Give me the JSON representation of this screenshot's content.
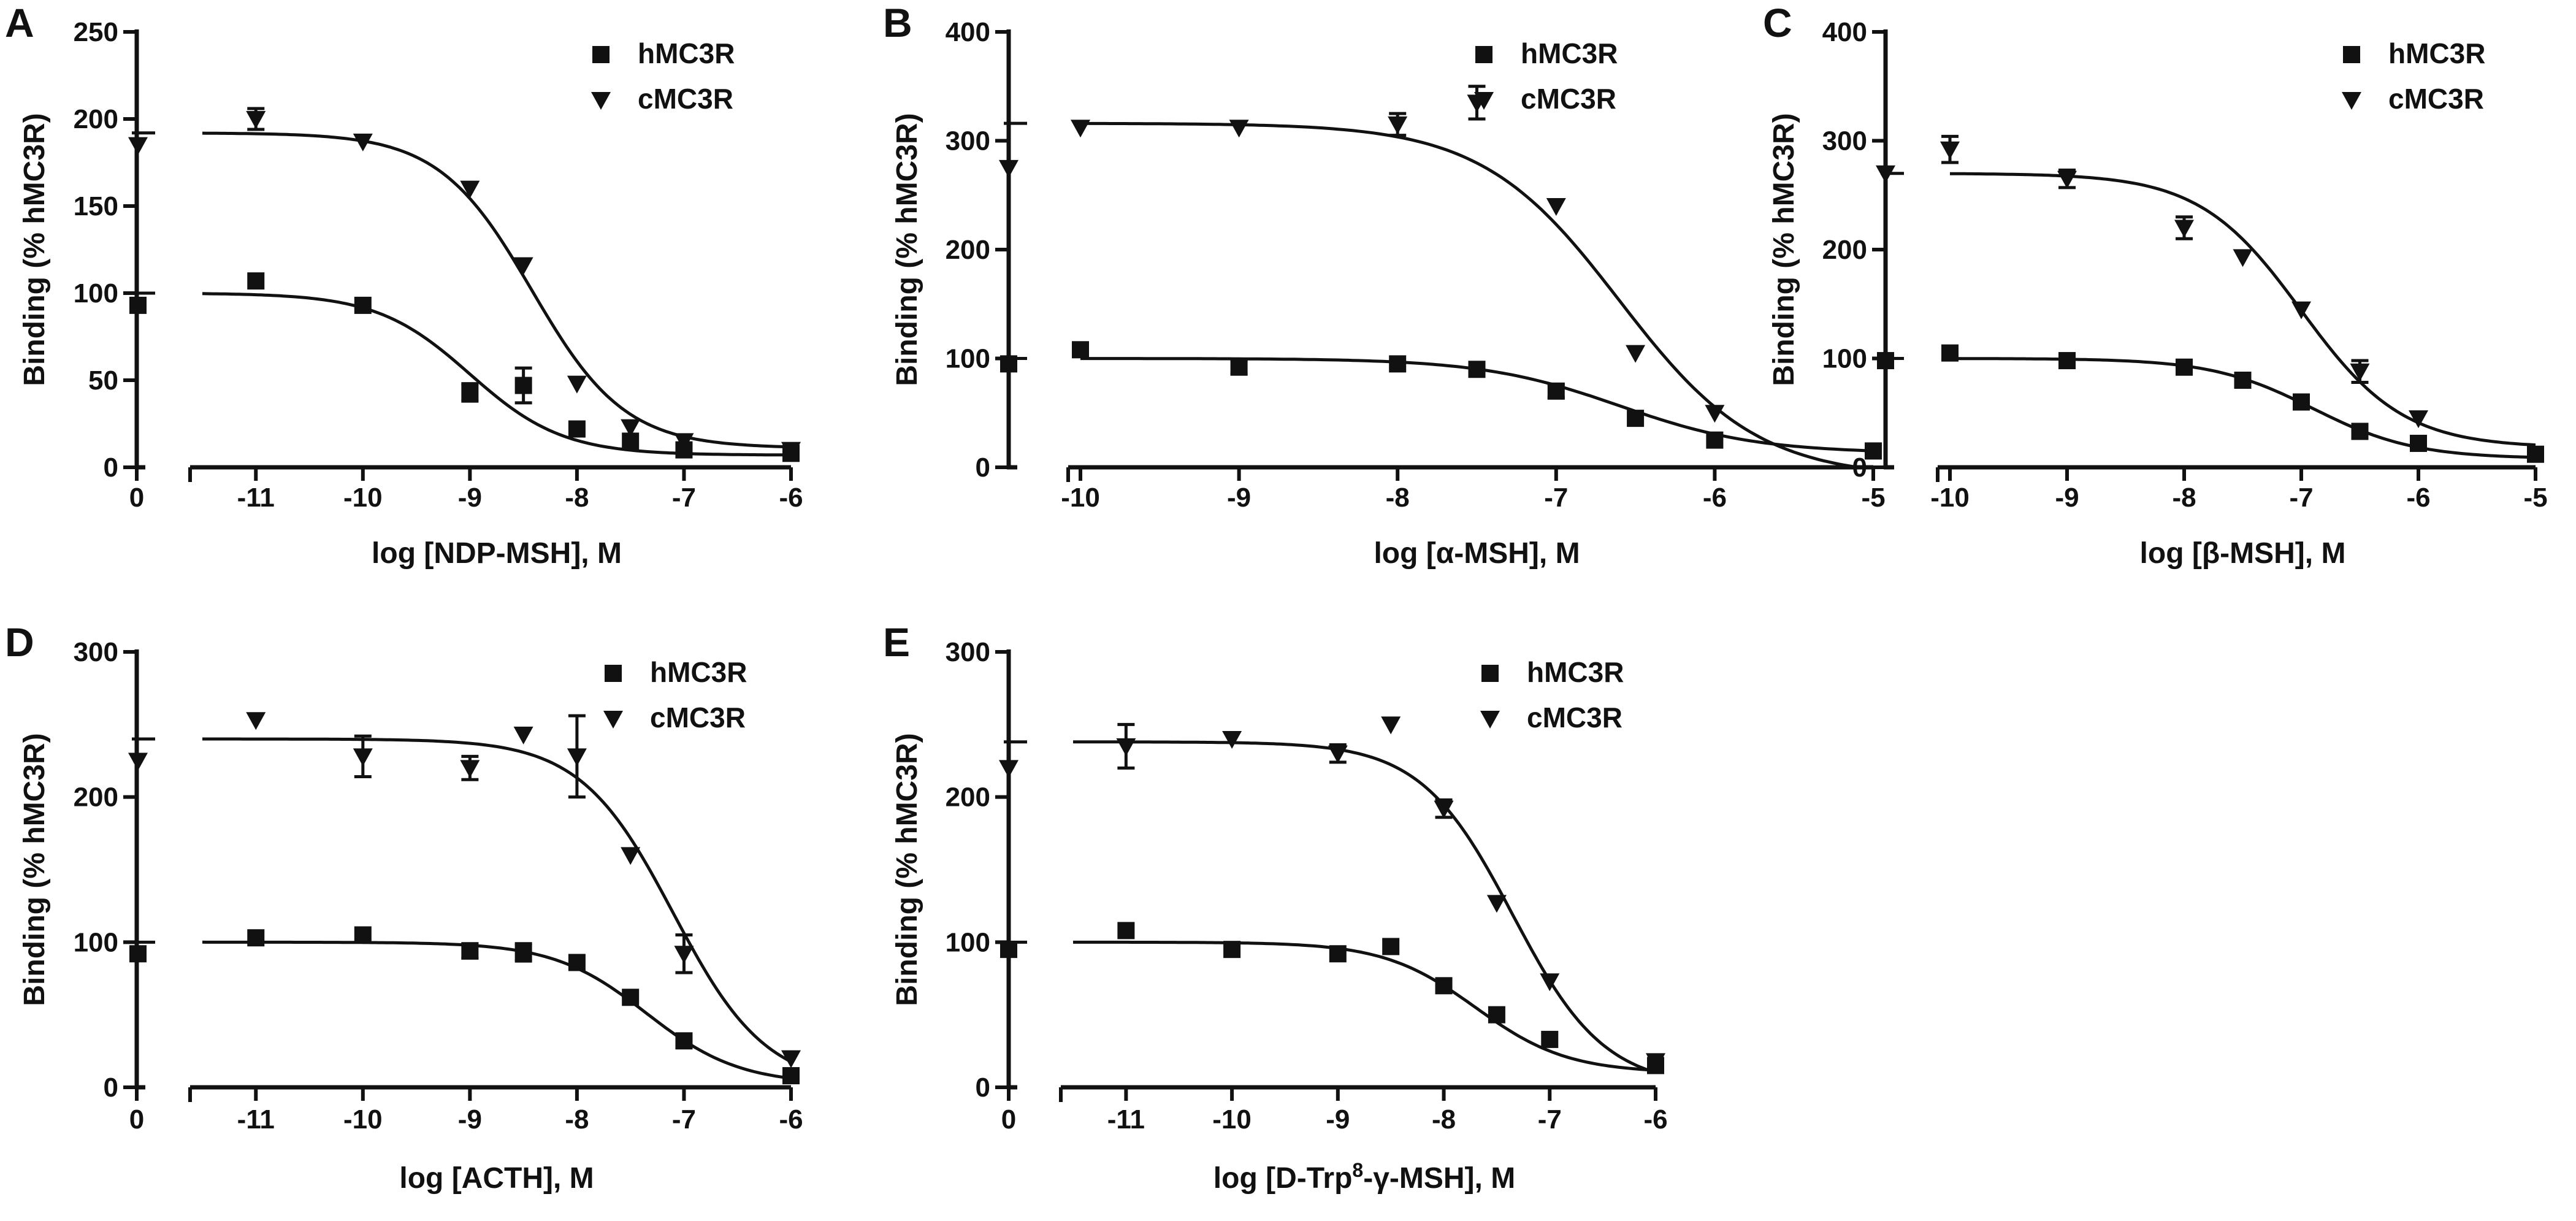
{
  "figure": {
    "series_names": [
      "hMC3R",
      "cMC3R"
    ],
    "colors": {
      "ink": "#111111",
      "background": "#ffffff"
    }
  },
  "chart_data": [
    {
      "type": "scatter",
      "panel": "A",
      "title": "",
      "xlabel": "log [NDP-MSH], M",
      "xlabel_parts": [
        "log [NDP-MSH], M"
      ],
      "ylabel": "Binding (% hMC3R)",
      "ylim": [
        0,
        250
      ],
      "yticks": [
        0,
        50,
        100,
        150,
        200,
        250
      ],
      "xlim": [
        -11.5,
        -6
      ],
      "xticks": [
        -11,
        -10,
        -9,
        -8,
        -7,
        -6
      ],
      "zero_label": "0",
      "legend": [
        "hMC3R",
        "cMC3R"
      ],
      "series": [
        {
          "name": "hMC3R",
          "marker": "square",
          "top": 100,
          "bottom": 7,
          "logEC50": -9.0,
          "zero_value": 93,
          "points": [
            {
              "x": -11,
              "y": 107
            },
            {
              "x": -10,
              "y": 93
            },
            {
              "x": -9,
              "y": 43,
              "err": 5
            },
            {
              "x": -8.5,
              "y": 47,
              "err": 10
            },
            {
              "x": -8,
              "y": 22
            },
            {
              "x": -7.5,
              "y": 15
            },
            {
              "x": -7,
              "y": 10
            },
            {
              "x": -6,
              "y": 8
            }
          ]
        },
        {
          "name": "cMC3R",
          "marker": "triangle",
          "top": 192,
          "bottom": 11,
          "logEC50": -8.42,
          "zero_value": 185,
          "points": [
            {
              "x": -11,
              "y": 200,
              "err": 6
            },
            {
              "x": -10,
              "y": 187
            },
            {
              "x": -9,
              "y": 160
            },
            {
              "x": -8.5,
              "y": 116
            },
            {
              "x": -8,
              "y": 48
            },
            {
              "x": -7.5,
              "y": 23
            },
            {
              "x": -7,
              "y": 15
            },
            {
              "x": -6,
              "y": 10
            }
          ]
        }
      ]
    },
    {
      "type": "scatter",
      "panel": "B",
      "title": "",
      "xlabel": "log [α-MSH], M",
      "xlabel_parts": [
        "log [α-MSH], M"
      ],
      "ylabel": "Binding (% hMC3R)",
      "ylim": [
        0,
        400
      ],
      "yticks": [
        0,
        100,
        200,
        300,
        400
      ],
      "xlim": [
        -10,
        -5
      ],
      "xticks": [
        -10,
        -9,
        -8,
        -7,
        -6,
        -5
      ],
      "zero_label": "",
      "legend": [
        "hMC3R",
        "cMC3R"
      ],
      "series": [
        {
          "name": "hMC3R",
          "marker": "square",
          "top": 100,
          "bottom": 13,
          "logEC50": -6.6,
          "zero_value": 95,
          "points": [
            {
              "x": -10,
              "y": 108
            },
            {
              "x": -9,
              "y": 92,
              "err": 6
            },
            {
              "x": -8,
              "y": 95
            },
            {
              "x": -7.5,
              "y": 90
            },
            {
              "x": -7,
              "y": 70,
              "err": 6
            },
            {
              "x": -6.5,
              "y": 45
            },
            {
              "x": -6,
              "y": 25
            },
            {
              "x": -5,
              "y": 15
            }
          ]
        },
        {
          "name": "cMC3R",
          "marker": "triangle",
          "top": 316,
          "bottom": -10,
          "logEC50": -6.6,
          "zero_value": 275,
          "points": [
            {
              "x": -10,
              "y": 312
            },
            {
              "x": -9,
              "y": 312
            },
            {
              "x": -8,
              "y": 315,
              "err": 10
            },
            {
              "x": -7.5,
              "y": 335,
              "err": 15
            },
            {
              "x": -7,
              "y": 240
            },
            {
              "x": -6.5,
              "y": 105
            },
            {
              "x": -6,
              "y": 50
            }
          ]
        }
      ]
    },
    {
      "type": "scatter",
      "panel": "C",
      "title": "",
      "xlabel": "log [β-MSH], M",
      "xlabel_parts": [
        "log [β-MSH], M"
      ],
      "ylabel": "Binding (% hMC3R)",
      "ylim": [
        0,
        400
      ],
      "yticks": [
        0,
        100,
        200,
        300,
        400
      ],
      "xlim": [
        -10,
        -5
      ],
      "xticks": [
        -10,
        -9,
        -8,
        -7,
        -6,
        -5
      ],
      "zero_label": "",
      "legend": [
        "hMC3R",
        "cMC3R"
      ],
      "series": [
        {
          "name": "hMC3R",
          "marker": "square",
          "top": 100,
          "bottom": 8,
          "logEC50": -6.9,
          "zero_value": 98,
          "points": [
            {
              "x": -10,
              "y": 105,
              "err": 6
            },
            {
              "x": -9,
              "y": 98
            },
            {
              "x": -8,
              "y": 92
            },
            {
              "x": -7.5,
              "y": 80
            },
            {
              "x": -7,
              "y": 60
            },
            {
              "x": -6.5,
              "y": 33
            },
            {
              "x": -6,
              "y": 22
            },
            {
              "x": -5,
              "y": 12,
              "err": 6
            }
          ]
        },
        {
          "name": "cMC3R",
          "marker": "triangle",
          "top": 270,
          "bottom": 18,
          "logEC50": -7.0,
          "zero_value": 270,
          "points": [
            {
              "x": -10,
              "y": 292,
              "err": 12
            },
            {
              "x": -9,
              "y": 265,
              "err": 8
            },
            {
              "x": -8,
              "y": 220,
              "err": 10
            },
            {
              "x": -7.5,
              "y": 193
            },
            {
              "x": -7,
              "y": 145
            },
            {
              "x": -6.5,
              "y": 88,
              "err": 10
            },
            {
              "x": -6,
              "y": 45
            }
          ]
        }
      ]
    },
    {
      "type": "scatter",
      "panel": "D",
      "title": "",
      "xlabel": "log [ACTH], M",
      "xlabel_parts": [
        "log [ACTH], M"
      ],
      "ylabel": "Binding (% hMC3R)",
      "ylim": [
        0,
        300
      ],
      "yticks": [
        0,
        100,
        200,
        300
      ],
      "xlim": [
        -11.5,
        -6
      ],
      "xticks": [
        -11,
        -10,
        -9,
        -8,
        -7,
        -6
      ],
      "zero_label": "0",
      "legend": [
        "hMC3R",
        "cMC3R"
      ],
      "series": [
        {
          "name": "hMC3R",
          "marker": "square",
          "top": 100,
          "bottom": 2,
          "logEC50": -7.35,
          "zero_value": 92,
          "points": [
            {
              "x": -11,
              "y": 103
            },
            {
              "x": -10,
              "y": 105
            },
            {
              "x": -9,
              "y": 94,
              "err": 5
            },
            {
              "x": -8.5,
              "y": 93,
              "err": 6
            },
            {
              "x": -8,
              "y": 86
            },
            {
              "x": -7.5,
              "y": 62
            },
            {
              "x": -7,
              "y": 32
            },
            {
              "x": -6,
              "y": 8
            }
          ]
        },
        {
          "name": "cMC3R",
          "marker": "triangle",
          "top": 240,
          "bottom": 0,
          "logEC50": -7.1,
          "zero_value": 225,
          "points": [
            {
              "x": -11,
              "y": 253
            },
            {
              "x": -10,
              "y": 228,
              "err": 14
            },
            {
              "x": -9,
              "y": 220,
              "err": 8
            },
            {
              "x": -8.5,
              "y": 243
            },
            {
              "x": -8,
              "y": 228,
              "err": 28
            },
            {
              "x": -7.5,
              "y": 160
            },
            {
              "x": -7,
              "y": 92,
              "err": 13
            },
            {
              "x": -6,
              "y": 20
            }
          ]
        }
      ]
    },
    {
      "type": "scatter",
      "panel": "E",
      "title": "",
      "xlabel": "log [D-Trp⁸-γ-MSH], M",
      "xlabel_parts": [
        "log [D-Trp",
        "8",
        "-γ-MSH], M"
      ],
      "ylabel": "Binding (% hMC3R)",
      "ylim": [
        0,
        300
      ],
      "yticks": [
        0,
        100,
        200,
        300
      ],
      "xlim": [
        -11.5,
        -6
      ],
      "xticks": [
        -11,
        -10,
        -9,
        -8,
        -7,
        -6
      ],
      "zero_label": "0",
      "legend": [
        "hMC3R",
        "cMC3R"
      ],
      "series": [
        {
          "name": "hMC3R",
          "marker": "square",
          "top": 100,
          "bottom": 10,
          "logEC50": -7.7,
          "zero_value": 95,
          "points": [
            {
              "x": -11,
              "y": 108
            },
            {
              "x": -10,
              "y": 95
            },
            {
              "x": -9,
              "y": 92
            },
            {
              "x": -8.5,
              "y": 97
            },
            {
              "x": -8,
              "y": 70
            },
            {
              "x": -7.5,
              "y": 50
            },
            {
              "x": -7,
              "y": 33
            },
            {
              "x": -6,
              "y": 15
            }
          ]
        },
        {
          "name": "cMC3R",
          "marker": "triangle",
          "top": 238,
          "bottom": 0,
          "logEC50": -7.35,
          "zero_value": 220,
          "points": [
            {
              "x": -11,
              "y": 235,
              "err": 15
            },
            {
              "x": -10,
              "y": 240
            },
            {
              "x": -9,
              "y": 230,
              "err": 6
            },
            {
              "x": -8.5,
              "y": 250
            },
            {
              "x": -8,
              "y": 192,
              "err": 6
            },
            {
              "x": -7.5,
              "y": 127
            },
            {
              "x": -7,
              "y": 73
            },
            {
              "x": -6,
              "y": 18
            }
          ]
        }
      ]
    }
  ]
}
